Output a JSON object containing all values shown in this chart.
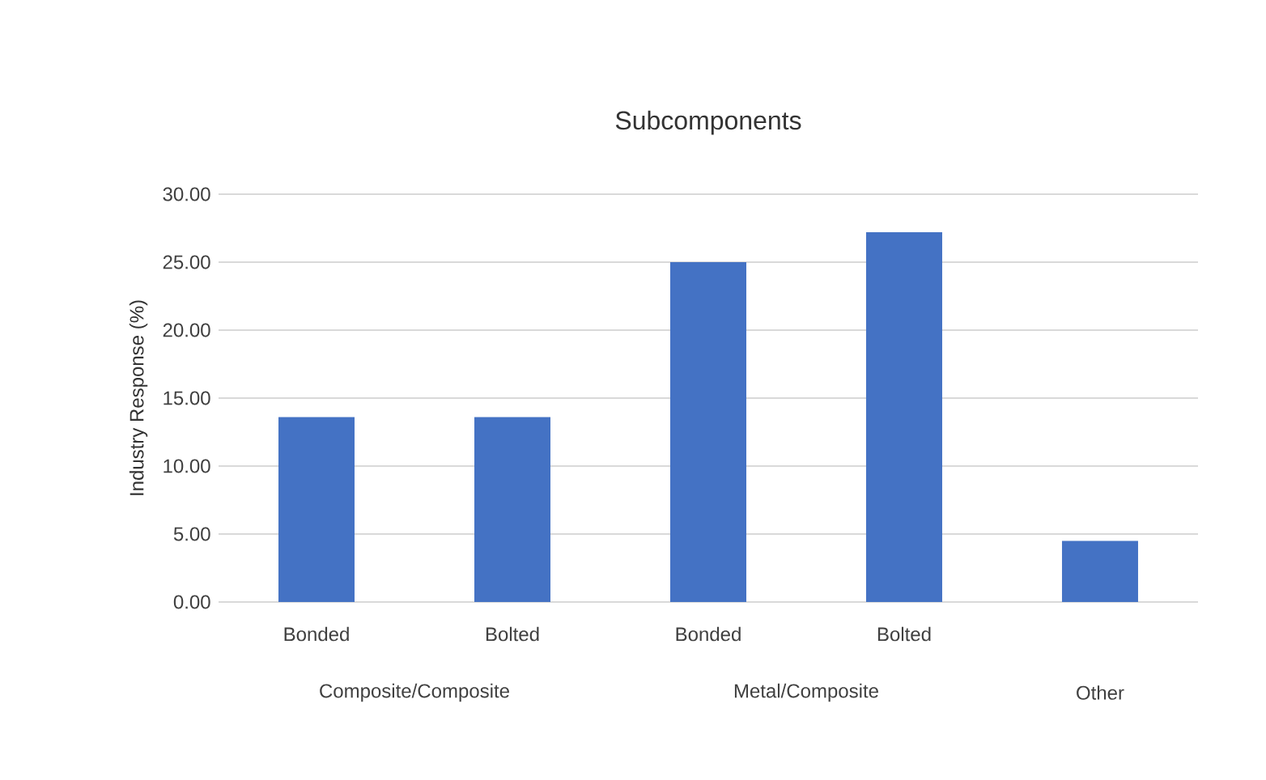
{
  "chart_data": {
    "type": "bar",
    "title": "Subcomponents",
    "ylabel": "Industry Response (%)",
    "categories": [
      "Bonded",
      "Bolted",
      "Bonded",
      "Bolted",
      null
    ],
    "values": [
      13.6,
      13.6,
      25.0,
      27.2,
      4.5
    ],
    "color": "#4472c4",
    "ylim": [
      0,
      30
    ],
    "yticks": [
      {
        "value": 0,
        "label": "0.00"
      },
      {
        "value": 5,
        "label": "5.00"
      },
      {
        "value": 10,
        "label": "10.00"
      },
      {
        "value": 15,
        "label": "15.00"
      },
      {
        "value": 20,
        "label": "20.00"
      },
      {
        "value": 25,
        "label": "25.00"
      },
      {
        "value": 30,
        "label": "30.00"
      }
    ],
    "grid": "y",
    "annotations": [
      "Composite/Composite",
      "Metal/Composite",
      "Other"
    ]
  }
}
